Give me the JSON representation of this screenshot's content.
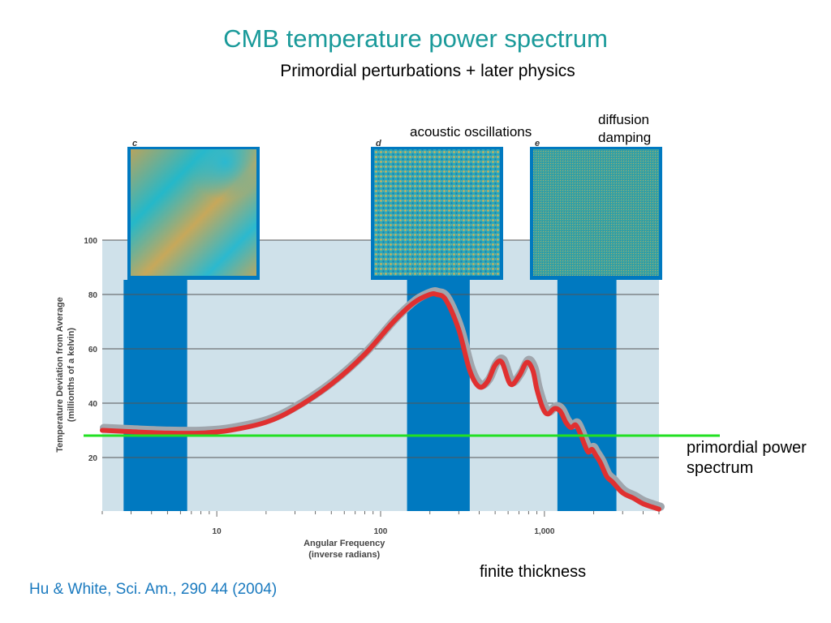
{
  "slide": {
    "title": "CMB temperature power spectrum",
    "subtitle": "Primordial perturbations + later physics",
    "notes": {
      "acoustic": "acoustic oscillations",
      "diffusion_line1": "diffusion",
      "diffusion_line2": "damping",
      "primordial_line1": "primordial power",
      "primordial_line2": "spectrum",
      "finite": "finite thickness"
    },
    "citation": "Hu & White, Sci. Am., 290 44 (2004)"
  },
  "colors": {
    "band": "#0079c0",
    "panel_bg": "#cfe1ea",
    "curve": "#e03030",
    "curve_shadow": "#a0a6ad",
    "primordial_line": "#22e022",
    "title": "#1a9a9a",
    "citation": "#1a7abf"
  },
  "chart_data": {
    "type": "line",
    "title": "",
    "xlabel": "Angular Frequency",
    "xlabel_sub": "(inverse radians)",
    "ylabel": "Temperature Deviation from Average",
    "ylabel_sub": "(millionths of a kelvin)",
    "x_scale": "log",
    "xlim": [
      2,
      5000
    ],
    "ylim": [
      0,
      100
    ],
    "x_ticks": [
      {
        "value": 10,
        "label": "10"
      },
      {
        "value": 100,
        "label": "100"
      },
      {
        "value": 1000,
        "label": "1,000"
      }
    ],
    "y_ticks": [
      {
        "value": 20,
        "label": "20"
      },
      {
        "value": 40,
        "label": "40"
      },
      {
        "value": 60,
        "label": "60"
      },
      {
        "value": 80,
        "label": "80"
      },
      {
        "value": 100,
        "label": "100"
      }
    ],
    "grid": "horizontal",
    "bands": [
      {
        "letter": "c",
        "x_range": [
          2.7,
          6.6
        ]
      },
      {
        "letter": "d",
        "x_range": [
          145,
          350
        ]
      },
      {
        "letter": "e",
        "x_range": [
          1200,
          2750
        ]
      }
    ],
    "series": [
      {
        "x": [
          2,
          3,
          5,
          8,
          12,
          20,
          30,
          50,
          80,
          120,
          160,
          200,
          220,
          250,
          300,
          350,
          400,
          450,
          500,
          550,
          620,
          700,
          780,
          850,
          900,
          980,
          1050,
          1150,
          1250,
          1350,
          1450,
          1550,
          1650,
          1750,
          1850,
          1950,
          2050,
          2200,
          2400,
          2600,
          3000,
          3500,
          4000,
          5000
        ],
        "y": [
          30,
          29.5,
          29,
          29,
          30,
          33,
          38,
          47,
          58,
          70,
          77,
          80,
          80,
          78,
          67,
          52,
          46,
          48,
          54,
          55,
          47,
          50,
          55,
          52,
          45,
          38,
          36,
          38,
          37,
          33,
          31,
          32,
          29,
          25,
          22,
          23,
          21,
          18,
          13,
          11,
          7,
          5,
          3,
          1
        ]
      }
    ],
    "reference_line": {
      "y": 28
    }
  }
}
